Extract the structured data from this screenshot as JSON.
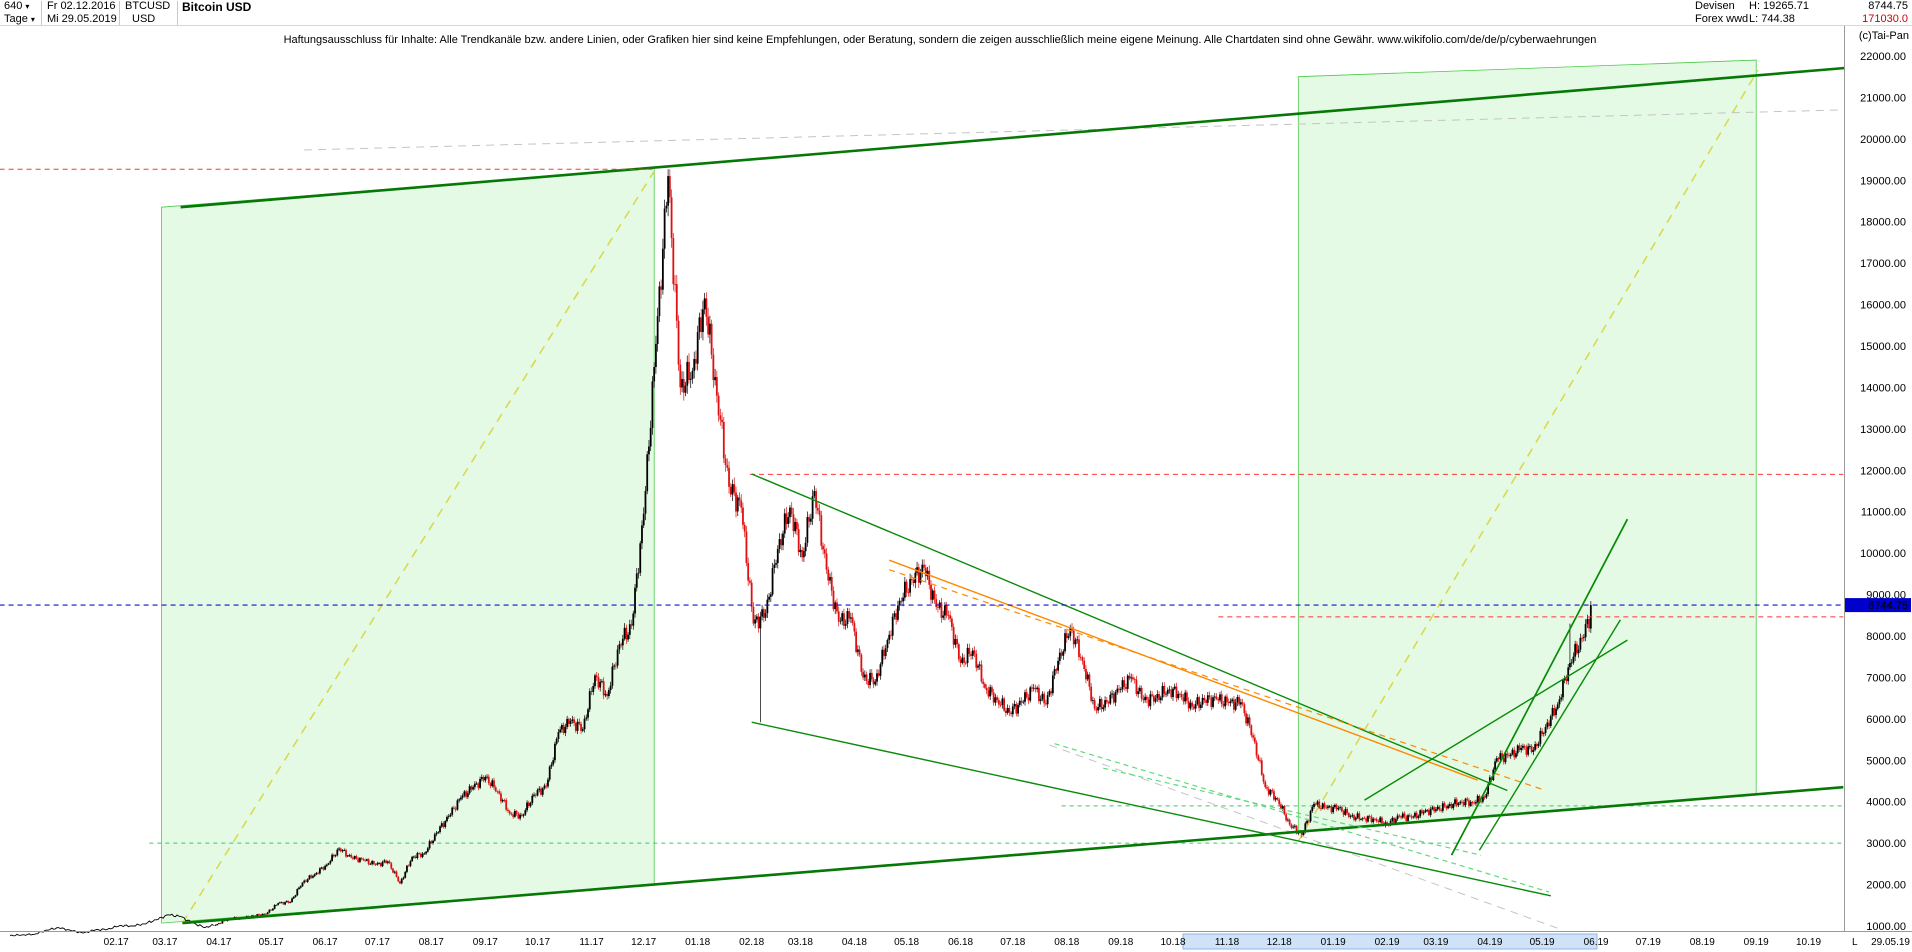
{
  "header": {
    "period_value": "640",
    "period_unit": "Tage",
    "start_date": "Fr 02.12.2016",
    "end_date": "Mi 29.05.2019",
    "symbol": "BTCUSD",
    "currency": "USD",
    "title": "Bitcoin USD",
    "category": "Devisen",
    "subcategory": "Forex wwd",
    "high_label": "H: 19265.71",
    "low_label": "L: 744.38",
    "last_price": "8744.75",
    "volume": "171030.0",
    "copyright": "(c)Tai-Pan"
  },
  "disclaimer": "Haftungsausschluss für Inhalte: Alle Trendkanäle bzw. andere Linien, oder Grafiken hier sind keine Empfehlungen, oder Beratung, sondern die zeigen ausschließlich meine eigene Meinung. Alle Chartdaten sind ohne Gewähr.  www.wikifolio.com/de/de/p/cyberwaehrungen",
  "colors": {
    "candle_up": "#000000",
    "candle_down": "#dd1111",
    "box_fill": "rgba(170,238,170,0.32)",
    "box_border": "#4ec94e",
    "axis_line": "#999999",
    "current_price_bg": "#0000cc",
    "current_price_text": "#ffffff",
    "scrollbar_fill": "#cfe2f7",
    "scrollbar_border": "#8fb7e6"
  },
  "chart_data": {
    "type": "candlestick",
    "instrument": "Bitcoin USD (BTCUSD)",
    "timeframe": "Tage",
    "start_date": "2016-12-02",
    "end_date": "2019-05-29",
    "high": 19265.71,
    "low": 744.38,
    "current_price": 8744.75,
    "current_price_label": "8744.75",
    "y_axis": {
      "min": 1000,
      "max": 22000,
      "step": 1000,
      "labels": [
        "22000.00",
        "21000.00",
        "20000.00",
        "19000.00",
        "18000.00",
        "17000.00",
        "16000.00",
        "15000.00",
        "14000.00",
        "13000.00",
        "12000.00",
        "11000.00",
        "10000.00",
        "9000.00",
        "8000.00",
        "7000.00",
        "6000.00",
        "5000.00",
        "4000.00",
        "3000.00",
        "2000.00",
        "1000.00"
      ]
    },
    "x_axis": {
      "labels": [
        "02.17",
        "03.17",
        "04.17",
        "05.17",
        "06.17",
        "07.17",
        "08.17",
        "09.17",
        "10.17",
        "11.17",
        "12.17",
        "01.18",
        "02.18",
        "03.18",
        "04.18",
        "05.18",
        "06.18",
        "07.18",
        "08.18",
        "09.18",
        "10.18",
        "11.18",
        "12.18",
        "01.19",
        "02.19",
        "03.19",
        "04.19",
        "05.19",
        "06.19",
        "07.19",
        "08.19",
        "09.19",
        "10.19"
      ],
      "last_marker": "L",
      "last_date": "29.05.19"
    },
    "anchor_interval_days": 7,
    "weekly_closes": [
      770,
      785,
      800,
      900,
      960,
      890,
      830,
      905,
      920,
      1010,
      1000,
      1050,
      1150,
      1270,
      1230,
      1070,
      965,
      1045,
      1185,
      1180,
      1250,
      1290,
      1550,
      1580,
      2050,
      2250,
      2480,
      2870,
      2650,
      2590,
      2480,
      2560,
      2030,
      2670,
      2750,
      3250,
      3650,
      4100,
      4350,
      4600,
      4250,
      3715,
      3660,
      4170,
      4370,
      5680,
      5950,
      5750,
      7050,
      6550,
      7800,
      8250,
      10950,
      15050,
      19100,
      14000,
      14400,
      16150,
      13800,
      11600,
      11100,
      8300,
      8550,
      10100,
      11100,
      9900,
      11500,
      9600,
      8350,
      8450,
      7000,
      6900,
      7900,
      8850,
      9350,
      9650,
      8700,
      8500,
      7350,
      7650,
      6750,
      6450,
      6150,
      6400,
      6750,
      6350,
      7400,
      8200,
      7400,
      6250,
      6400,
      6700,
      7000,
      6450,
      6500,
      6700,
      6600,
      6300,
      6450,
      6480,
      6380,
      6400,
      5550,
      4350,
      4050,
      3450,
      3200,
      3950,
      3850,
      3850,
      3650,
      3600,
      3580,
      3450,
      3650,
      3620,
      3750,
      3820,
      3900,
      4000,
      3980,
      4100,
      5050,
      5100,
      5300,
      5250,
      5800,
      6350,
      7350,
      7950,
      8744.75
    ],
    "wick_overrides": {
      "2": {
        "low": 744.38
      },
      "379": {
        "high": 19265.71
      },
      "431": {
        "low": 5920
      },
      "742": {
        "low": 3130
      },
      "896": {
        "high": 8300
      }
    },
    "overlays": {
      "boxes": [
        {
          "name": "trend-channel-box-2017",
          "pts": [
            [
              87,
              18350
            ],
            [
              370,
              19300
            ],
            [
              370,
              2000
            ],
            [
              87,
              1070
            ]
          ]
        },
        {
          "name": "trend-channel-box-2019",
          "pts": [
            [
              740,
              21500
            ],
            [
              1003,
              21900
            ],
            [
              1003,
              4180
            ],
            [
              740,
              3270
            ]
          ]
        }
      ],
      "lines": [
        {
          "name": "yellow-diagonal-2017",
          "bg": true,
          "t1": 99,
          "p1": 1070,
          "t2": 370,
          "p2": 19220,
          "color": "#d8d848",
          "w": 1.5,
          "dash": "9 7"
        },
        {
          "name": "yellow-diagonal-2019",
          "bg": true,
          "t1": 740,
          "p1": 3050,
          "t2": 1004,
          "p2": 21660,
          "color": "#d8d848",
          "w": 1.5,
          "dash": "9 7"
        },
        {
          "name": "gray-dashed-top",
          "bg": true,
          "t1": 169,
          "p1": 19730,
          "t2": 1052,
          "p2": 20700,
          "color": "#c4c4c4",
          "w": 1,
          "dash": "8 6"
        },
        {
          "name": "gray-dashed-bottom",
          "bg": true,
          "t1": 597,
          "p1": 5370,
          "t2": 890,
          "p2": 930,
          "color": "#c4c4c4",
          "w": 1,
          "dash": "8 6"
        },
        {
          "name": "support-3000-dashed",
          "bg": true,
          "t1": 80,
          "p1": 3000,
          "t2": 1053,
          "p2": 3000,
          "color": "#33cc66",
          "w": 1,
          "dash": "4 4"
        },
        {
          "name": "support-3900-dashed",
          "bg": true,
          "t1": 604,
          "p1": 3900,
          "t2": 1053,
          "p2": 3900,
          "color": "#33cc66",
          "w": 1,
          "dash": "4 4"
        },
        {
          "name": "upper-channel-line",
          "bg": false,
          "t1": 98,
          "p1": 18350,
          "t2": 1054,
          "p2": 21710,
          "color": "#067806",
          "w": 2.6
        },
        {
          "name": "lower-channel-line",
          "bg": false,
          "t1": 99,
          "p1": 1070,
          "t2": 1053,
          "p2": 4350,
          "color": "#067806",
          "w": 2.6
        },
        {
          "name": "resistance-ath-dashed",
          "bg": false,
          "t1": -6,
          "p1": 19265.71,
          "t2": 369,
          "p2": 19265.71,
          "color": "#ff3333",
          "w": 1,
          "dash": "5 4"
        },
        {
          "name": "resistance-12000-dashed",
          "bg": false,
          "t1": 425,
          "p1": 11900,
          "t2": 1053,
          "p2": 11900,
          "color": "#ff3333",
          "w": 1,
          "dash": "5 4"
        },
        {
          "name": "resistance-8460-dashed",
          "bg": false,
          "t1": 694,
          "p1": 8460,
          "t2": 1053,
          "p2": 8460,
          "color": "#ff3333",
          "w": 1,
          "dash": "5 4"
        },
        {
          "name": "triangle-upper-line",
          "bg": false,
          "t1": 426,
          "p1": 11910,
          "t2": 860,
          "p2": 4270,
          "color": "#0a8a0a",
          "w": 1.4
        },
        {
          "name": "triangle-lower-line",
          "bg": false,
          "t1": 426,
          "p1": 5920,
          "t2": 885,
          "p2": 1730,
          "color": "#0a8a0a",
          "w": 1.4
        },
        {
          "name": "orange-trend-solid",
          "bg": false,
          "t1": 505,
          "p1": 9830,
          "t2": 843,
          "p2": 4520,
          "color": "#ff8800",
          "w": 1.4
        },
        {
          "name": "orange-trend-dashed",
          "bg": false,
          "t1": 505,
          "p1": 9600,
          "t2": 880,
          "p2": 4300,
          "color": "#ff8800",
          "w": 1.2,
          "dash": "6 5"
        },
        {
          "name": "lightgreen-desc-1",
          "bg": false,
          "t1": 600,
          "p1": 5400,
          "t2": 884,
          "p2": 1820,
          "color": "#5fd97f",
          "w": 1.2,
          "dash": "5 4"
        },
        {
          "name": "lightgreen-desc-2",
          "bg": false,
          "t1": 628,
          "p1": 4810,
          "t2": 845,
          "p2": 2710,
          "color": "#5fd97f",
          "w": 1.2,
          "dash": "5 4"
        },
        {
          "name": "rally-line-steep",
          "bg": false,
          "t1": 828,
          "p1": 2710,
          "t2": 929,
          "p2": 10820,
          "color": "#078a07",
          "w": 1.7
        },
        {
          "name": "rally-line-mid",
          "bg": false,
          "t1": 844,
          "p1": 2830,
          "t2": 925,
          "p2": 8390,
          "color": "#078a07",
          "w": 1.4
        },
        {
          "name": "rally-line-long",
          "bg": false,
          "t1": 778,
          "p1": 4040,
          "t2": 929,
          "p2": 7900,
          "color": "#078a07",
          "w": 1.4
        },
        {
          "name": "current-price-line",
          "bg": false,
          "t1": -6,
          "p1": 8744.75,
          "t2": 1053,
          "p2": 8744.75,
          "color": "#1111cc",
          "w": 1.1,
          "dash": "5 4"
        }
      ]
    }
  }
}
